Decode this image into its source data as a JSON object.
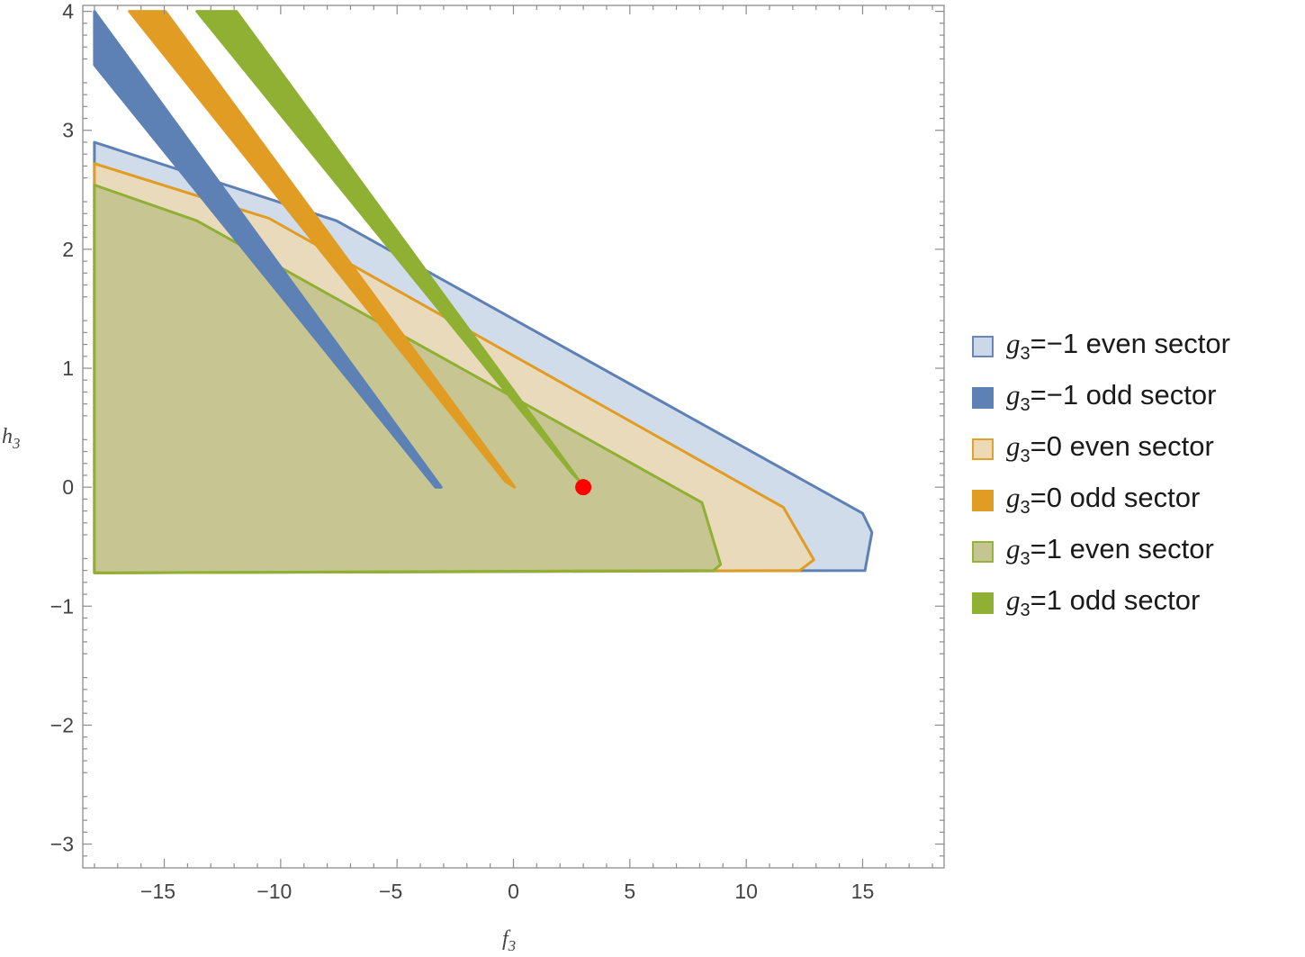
{
  "chart_data": {
    "type": "area",
    "title": "",
    "xlabel": {
      "base": "f",
      "sub": "3"
    },
    "ylabel": {
      "base": "h",
      "sub": "3"
    },
    "xlim": [
      -18.5,
      18.5
    ],
    "ylim": [
      -3.2,
      4.05
    ],
    "xticks": [
      -15,
      -10,
      -5,
      0,
      5,
      10,
      15
    ],
    "xtick_labels": [
      "−15",
      "−10",
      "−5",
      "0",
      "5",
      "10",
      "15"
    ],
    "yticks": [
      -3,
      -2,
      -1,
      0,
      1,
      2,
      3,
      4
    ],
    "ytick_labels": [
      "−3",
      "−2",
      "−1",
      "0",
      "1",
      "2",
      "3",
      "4"
    ],
    "grid": false,
    "legend_position": "right",
    "series": [
      {
        "name": "g3=−1 even sector",
        "label": {
          "var": "g",
          "sub": "3",
          "text": "=−1 even sector"
        },
        "style": "even",
        "color": "#5e81b5",
        "fill": "#c9d6e7",
        "points": [
          [
            -18,
            2.9
          ],
          [
            -7.6,
            2.24
          ],
          [
            15,
            -0.22
          ],
          [
            15.4,
            -0.38
          ],
          [
            15.1,
            -0.7
          ],
          [
            -18,
            -0.72
          ]
        ]
      },
      {
        "name": "g3=−1 odd sector",
        "label": {
          "var": "g",
          "sub": "3",
          "text": "=−1 odd sector"
        },
        "style": "odd",
        "color": "#5e81b5",
        "fill": "#5e81b5",
        "points": [
          [
            -18,
            4
          ],
          [
            -3.1,
            0.0
          ],
          [
            -3.35,
            0.0
          ],
          [
            -18,
            3.55
          ]
        ]
      },
      {
        "name": "g3=0 even sector",
        "label": {
          "var": "g",
          "sub": "3",
          "text": "=0 even sector"
        },
        "style": "even",
        "color": "#e19c24",
        "fill": "#ecd9b2",
        "points": [
          [
            -18,
            2.72
          ],
          [
            -10.5,
            2.26
          ],
          [
            11.6,
            -0.17
          ],
          [
            12.9,
            -0.61
          ],
          [
            12.3,
            -0.7
          ],
          [
            -18,
            -0.72
          ]
        ]
      },
      {
        "name": "g3=0 odd sector",
        "label": {
          "var": "g",
          "sub": "3",
          "text": "=0 odd sector"
        },
        "style": "odd",
        "color": "#e19c24",
        "fill": "#e19c24",
        "points": [
          [
            -14.95,
            4
          ],
          [
            0.05,
            0.0
          ],
          [
            -0.35,
            0.05
          ],
          [
            -16.5,
            4
          ]
        ]
      },
      {
        "name": "g3=1 even sector",
        "label": {
          "var": "g",
          "sub": "3",
          "text": "=1 even sector"
        },
        "style": "even",
        "color": "#8fb032",
        "fill": "#c1c28c",
        "points": [
          [
            -18,
            2.54
          ],
          [
            -13.6,
            2.24
          ],
          [
            8.1,
            -0.13
          ],
          [
            8.9,
            -0.65
          ],
          [
            8.6,
            -0.7
          ],
          [
            -18,
            -0.72
          ]
        ]
      },
      {
        "name": "g3=1 odd sector",
        "label": {
          "var": "g",
          "sub": "3",
          "text": "=1 odd sector"
        },
        "style": "odd",
        "color": "#8fb032",
        "fill": "#8fb032",
        "points": [
          [
            -11.9,
            4
          ],
          [
            2.85,
            0.05
          ],
          [
            2.5,
            0.12
          ],
          [
            -13.6,
            4
          ]
        ]
      }
    ],
    "markers": [
      {
        "x": 3,
        "y": 0,
        "color": "#ff0000"
      }
    ]
  }
}
